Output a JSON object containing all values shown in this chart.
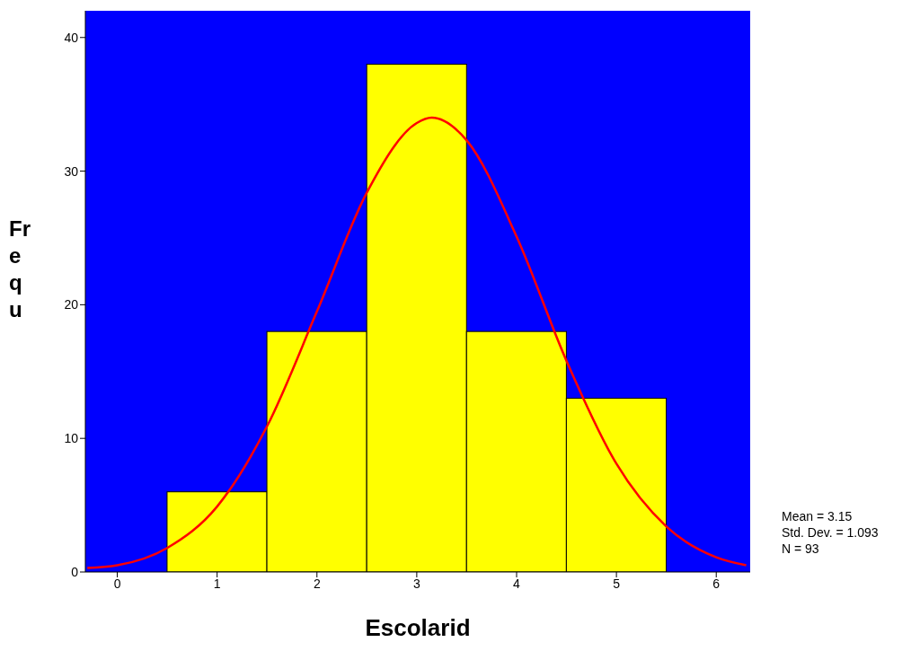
{
  "chart_data": {
    "type": "histogram",
    "xlabel": "Escolarid",
    "ylabel": "Frequ",
    "bins": [
      0.5,
      1.5,
      2.5,
      3.5,
      4.5,
      5.5
    ],
    "values": [
      6,
      18,
      38,
      18,
      13
    ],
    "color": "#ffff00",
    "series": [
      {
        "type": "line",
        "color": "#ff0000",
        "x": [
          -0.3,
          0,
          0.5,
          1,
          1.5,
          2,
          2.5,
          3,
          3.15,
          3.5,
          4,
          4.5,
          5,
          5.5,
          6,
          6.3
        ],
        "values": [
          0.3,
          0.5,
          1.8,
          4.9,
          10.9,
          19.5,
          28.4,
          33.6,
          34,
          32.3,
          25.1,
          15.8,
          8.1,
          3.4,
          1.1,
          0.5
        ]
      }
    ],
    "xlim": [
      -0.32,
      6.34
    ],
    "ylim": [
      0,
      42
    ],
    "xticks": [
      0,
      1,
      2,
      3,
      4,
      5,
      6
    ],
    "yticks": [
      0,
      10,
      20,
      30,
      40
    ],
    "annotations": [
      "Mean = 3.15",
      "Std. Dev. = 1.093",
      "N = 93"
    ]
  }
}
